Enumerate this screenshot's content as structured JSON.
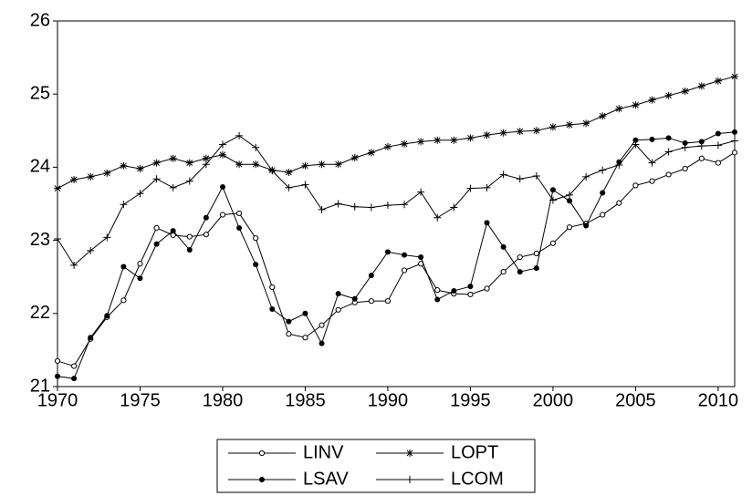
{
  "chart_data": {
    "type": "line",
    "x": [
      1970,
      1971,
      1972,
      1973,
      1974,
      1975,
      1976,
      1977,
      1978,
      1979,
      1980,
      1981,
      1982,
      1983,
      1984,
      1985,
      1986,
      1987,
      1988,
      1989,
      1990,
      1991,
      1992,
      1993,
      1994,
      1995,
      1996,
      1997,
      1998,
      1999,
      2000,
      2001,
      2002,
      2003,
      2004,
      2005,
      2006,
      2007,
      2008,
      2009,
      2010,
      2011
    ],
    "xlim": [
      1970,
      2011
    ],
    "xticks": [
      1970,
      1975,
      1980,
      1985,
      1990,
      1995,
      2000,
      2005,
      2010
    ],
    "ylim": [
      21,
      26
    ],
    "yticks": [
      21,
      22,
      23,
      24,
      25,
      26
    ],
    "series": [
      {
        "name": "LINV",
        "color": "#000000",
        "marker": "open-circle",
        "values": [
          21.35,
          21.28,
          21.65,
          21.95,
          22.18,
          22.68,
          23.17,
          23.07,
          23.05,
          23.08,
          23.35,
          23.37,
          23.03,
          22.36,
          21.72,
          21.67,
          21.84,
          22.05,
          22.15,
          22.17,
          22.17,
          22.59,
          22.68,
          22.32,
          22.27,
          22.26,
          22.34,
          22.57,
          22.77,
          22.82,
          22.96,
          23.18,
          23.23,
          23.35,
          23.51,
          23.75,
          23.81,
          23.9,
          23.98,
          24.12,
          24.06,
          24.2
        ]
      },
      {
        "name": "LOPT",
        "color": "#000000",
        "marker": "asterisk",
        "values": [
          23.71,
          23.83,
          23.87,
          23.92,
          24.02,
          23.98,
          24.06,
          24.12,
          24.06,
          24.12,
          24.17,
          24.04,
          24.04,
          23.96,
          23.93,
          24.02,
          24.04,
          24.04,
          24.13,
          24.2,
          24.28,
          24.32,
          24.35,
          24.37,
          24.37,
          24.4,
          24.44,
          24.47,
          24.49,
          24.5,
          24.55,
          24.58,
          24.6,
          24.7,
          24.8,
          24.85,
          24.92,
          24.98,
          25.04,
          25.11,
          25.18,
          25.24
        ]
      },
      {
        "name": "LSAV",
        "color": "#000000",
        "marker": "filled-circle",
        "values": [
          21.14,
          21.11,
          21.67,
          21.97,
          22.64,
          22.48,
          22.95,
          23.13,
          22.87,
          23.31,
          23.73,
          23.17,
          22.67,
          22.06,
          21.89,
          22.0,
          21.59,
          22.27,
          22.2,
          22.52,
          22.84,
          22.8,
          22.77,
          22.19,
          22.31,
          22.37,
          23.24,
          22.91,
          22.57,
          22.62,
          23.69,
          23.54,
          23.2,
          23.65,
          24.07,
          24.37,
          24.38,
          24.4,
          24.33,
          24.35,
          24.46,
          24.48
        ]
      },
      {
        "name": "LCOM",
        "color": "#000000",
        "marker": "plus",
        "values": [
          23.02,
          22.66,
          22.86,
          23.04,
          23.49,
          23.64,
          23.84,
          23.72,
          23.81,
          24.04,
          24.31,
          24.43,
          24.27,
          23.95,
          23.72,
          23.76,
          23.42,
          23.5,
          23.46,
          23.45,
          23.48,
          23.49,
          23.66,
          23.31,
          23.45,
          23.71,
          23.72,
          23.9,
          23.84,
          23.88,
          23.55,
          23.62,
          23.87,
          23.96,
          24.03,
          24.31,
          24.06,
          24.21,
          24.27,
          24.29,
          24.3,
          24.36
        ]
      }
    ]
  }
}
